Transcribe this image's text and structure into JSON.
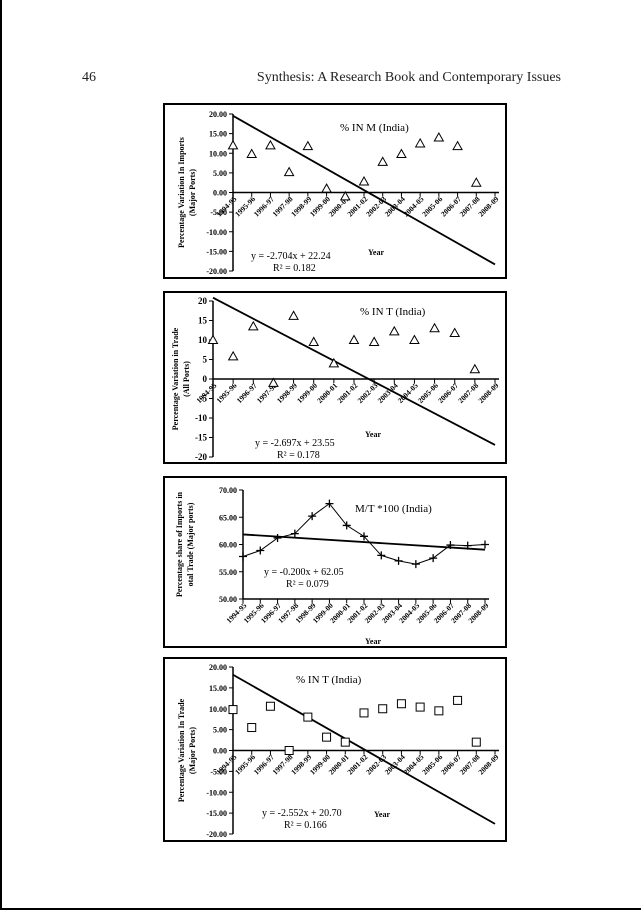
{
  "page": {
    "page_number": "46",
    "running_head": "Synthesis: A Research Book and Contemporary Issues"
  },
  "chart_data": [
    {
      "type": "scatter",
      "marker": "triangle",
      "title": "% IN M (India)",
      "xlabel": "Year",
      "ylabel_lines": [
        "Percentage Variation In Imports",
        "(Major Ports)"
      ],
      "categories": [
        "1994-95",
        "1995-96",
        "1996-97",
        "1997-98",
        "1998-99",
        "1999-00",
        "2000-01",
        "2001-02",
        "2002-03",
        "2003-04",
        "2004-05",
        "2005-06",
        "2006-07",
        "2007-08",
        "2008-09"
      ],
      "x_tick_labels": [
        "1994-95",
        "1995-96",
        "1996-97",
        "1997-98",
        "1998-99",
        "1999-00",
        "2000-01",
        "2001-02",
        "2002-03",
        "2003-04",
        "2004-05",
        "2005-06",
        "2006-07",
        "2007-08",
        "2008-09"
      ],
      "series": [
        {
          "values": [
            12.0,
            9.8,
            12.0,
            5.2,
            11.8,
            1.0,
            -1.0,
            2.8,
            7.8,
            9.8,
            12.5,
            14.0,
            11.8,
            2.5,
            null
          ]
        }
      ],
      "trendline": {
        "slope": -2.704,
        "intercept": 22.24
      },
      "equation": "y = -2.704x + 22.24",
      "r2": "R² = 0.182",
      "ylim": [
        -20,
        20
      ],
      "y_ticks": [
        20,
        15,
        10,
        5,
        0,
        -5,
        -10,
        -15,
        -20
      ],
      "y_tick_labels": [
        "20.00",
        "15.00",
        "10.00",
        "5.00",
        "0.00",
        "-5.00",
        "-10.00",
        "-15.00",
        "-20.00"
      ],
      "grid": false,
      "x_labels_at": "zero-line"
    },
    {
      "type": "scatter",
      "marker": "triangle",
      "title": "% IN T (India)",
      "xlabel": "Year",
      "ylabel_lines": [
        "Percentage Variation in Trade",
        "(All Ports)"
      ],
      "categories": [
        "1994-95",
        "1995-96",
        "1996-97",
        "1997-98",
        "1998-99",
        "1999-00",
        "2000-01",
        "2001-02",
        "2002-03",
        "2003-04",
        "2004-05",
        "2005-06",
        "2006-07",
        "2007-08",
        "2008-09"
      ],
      "x_tick_labels": [
        "1994-95",
        "1995-96",
        "1996-97",
        "1997-98",
        "1998-99",
        "1999-00",
        "2000-01",
        "2001-02",
        "2002-03",
        "2003-04",
        "2004-05",
        "2005-06",
        "2006-07",
        "2007-08",
        "2008-09"
      ],
      "series": [
        {
          "values": [
            10.0,
            5.8,
            13.5,
            -1.0,
            16.2,
            9.5,
            4.0,
            10.0,
            9.5,
            12.2,
            10.0,
            13.0,
            11.8,
            2.5,
            null
          ]
        }
      ],
      "trendline": {
        "slope": -2.697,
        "intercept": 23.55
      },
      "equation": "y = -2.697x + 23.55",
      "r2": "R² = 0.178",
      "ylim": [
        -20,
        20
      ],
      "y_ticks": [
        20,
        15,
        10,
        5,
        0,
        -5,
        -10,
        -15,
        -20
      ],
      "y_tick_labels": [
        "20",
        "15",
        "10",
        "5",
        "0",
        "-5",
        "-10",
        "-15",
        "-20"
      ],
      "grid": false,
      "x_labels_at": "zero-line"
    },
    {
      "type": "line",
      "marker": "plus",
      "title": "M/T *100 (India)",
      "xlabel": "Year",
      "ylabel_lines": [
        "Percentage share of Imports in",
        "otal Trade (Major ports)"
      ],
      "categories": [
        "1994-95",
        "1995-96",
        "1996-97",
        "1997-98",
        "1998-99",
        "1999-00",
        "2000-01",
        "2001-02",
        "2002-03",
        "2003-04",
        "2004-05",
        "2005-06",
        "2006-07",
        "2007-08",
        "2008-09"
      ],
      "x_tick_labels": [
        "1994-95",
        "1995-96",
        "1996-97",
        "1997-98",
        "1998-99",
        "1999-00",
        "2000-01",
        "2001-02",
        "2002-03",
        "2003-04",
        "2004-05",
        "2005-06",
        "2006-07",
        "2007-08",
        "2008-09"
      ],
      "series": [
        {
          "values": [
            57.8,
            58.9,
            61.2,
            62.0,
            65.2,
            67.5,
            63.5,
            61.5,
            58.0,
            57.0,
            56.4,
            57.5,
            59.9,
            59.8,
            60.0
          ]
        }
      ],
      "trendline": {
        "slope": -0.2,
        "intercept": 62.05
      },
      "equation": "y = -0.200x + 62.05",
      "r2": "R² = 0.079",
      "ylim": [
        50,
        70
      ],
      "y_ticks": [
        70,
        65,
        60,
        55,
        50
      ],
      "y_tick_labels": [
        "70.00",
        "65.00",
        "60.00",
        "55.00",
        "50.00"
      ],
      "grid": false,
      "x_labels_at": "bottom"
    },
    {
      "type": "scatter",
      "marker": "square",
      "title": "% IN T (India)",
      "xlabel": "Year",
      "ylabel_lines": [
        "Percentage Variation In Trade",
        "(Major Ports)"
      ],
      "categories": [
        "1994-95",
        "1995-96",
        "1996-97",
        "1997-98",
        "1998-99",
        "1999-00",
        "2000-01",
        "2001-02",
        "2002-03",
        "2003-04",
        "2004-05",
        "2005-06",
        "2006-07",
        "2007-08",
        "2008-09"
      ],
      "x_tick_labels": [
        "1994-95",
        "1995-96",
        "1996-97",
        "1997-98",
        "1998-99",
        "1999-00",
        "2000-01",
        "2001-02",
        "2002-03",
        "2003-04",
        "2004-05",
        "2005-06",
        "2006-07",
        "2007-08",
        "2008-09"
      ],
      "series": [
        {
          "values": [
            9.8,
            5.5,
            10.6,
            0.0,
            8.0,
            3.2,
            2.0,
            9.0,
            10.0,
            11.2,
            10.4,
            9.5,
            12.0,
            2.0,
            null
          ]
        }
      ],
      "trendline": {
        "slope": -2.552,
        "intercept": 20.7
      },
      "equation": "y = -2.552x + 20.70",
      "r2": "R² = 0.166",
      "ylim": [
        -20,
        20
      ],
      "y_ticks": [
        20,
        15,
        10,
        5,
        0,
        -5,
        -10,
        -15,
        -20
      ],
      "y_tick_labels": [
        "20.00",
        "15.00",
        "10.00",
        "5.00",
        "0.00",
        "-5.00",
        "-10.00",
        "-15.00",
        "-20.00"
      ],
      "grid": false,
      "x_labels_at": "zero-line"
    }
  ]
}
